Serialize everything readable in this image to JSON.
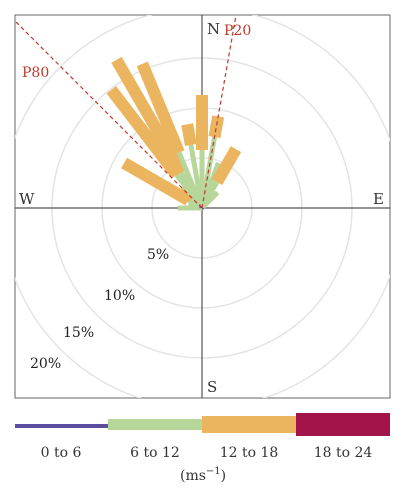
{
  "chart_data": {
    "type": "wind-rose",
    "directions": {
      "north": "N",
      "south": "S",
      "east": "E",
      "west": "W"
    },
    "ring_labels": [
      "5%",
      "10%",
      "15%",
      "20%"
    ],
    "rings_percent": [
      5,
      10,
      15,
      20
    ],
    "reference_lines": [
      {
        "name": "P80",
        "bearing_deg": 315
      },
      {
        "name": "P20",
        "bearing_deg": 10
      }
    ],
    "legend": {
      "unit": "(ms",
      "unit_exp": "−1",
      "unit_close": ")",
      "bins": [
        {
          "label": "0 to 6",
          "color": "#5b4ea0"
        },
        {
          "label": "6 to 12",
          "color": "#b7d69a"
        },
        {
          "label": "12 to 18",
          "color": "#ebb45f"
        },
        {
          "label": "18 to 24",
          "color": "#a3144a"
        }
      ]
    },
    "series": [
      {
        "bearing_deg": 270,
        "bins_percent": [
          0.0,
          2.4,
          0.0,
          0.0
        ]
      },
      {
        "bearing_deg": 292.5,
        "bins_percent": [
          0.0,
          1.4,
          0.0,
          0.0
        ]
      },
      {
        "bearing_deg": 300,
        "bins_percent": [
          0.0,
          1.6,
          7.4,
          0.0
        ]
      },
      {
        "bearing_deg": 315,
        "bins_percent": [
          0.0,
          1.4,
          1.4,
          0.0
        ]
      },
      {
        "bearing_deg": 322.5,
        "bins_percent": [
          0.0,
          4.2,
          10.7,
          0.0
        ]
      },
      {
        "bearing_deg": 330,
        "bins_percent": [
          0.0,
          4.1,
          13.0,
          0.0
        ]
      },
      {
        "bearing_deg": 337.5,
        "bins_percent": [
          0.0,
          6.0,
          9.6,
          0.0
        ]
      },
      {
        "bearing_deg": 350,
        "bins_percent": [
          0.0,
          6.4,
          2.1,
          0.0
        ]
      },
      {
        "bearing_deg": 355,
        "bins_percent": [
          0.2,
          2.5,
          0.0,
          0.0
        ]
      },
      {
        "bearing_deg": 0,
        "bins_percent": [
          0.4,
          5.4,
          5.5,
          0.0
        ]
      },
      {
        "bearing_deg": 10,
        "bins_percent": [
          0.3,
          6.9,
          2.1,
          0.0
        ]
      },
      {
        "bearing_deg": 20,
        "bins_percent": [
          0.2,
          4.6,
          0.0,
          0.0
        ]
      },
      {
        "bearing_deg": 30,
        "bins_percent": [
          0.1,
          2.9,
          3.8,
          0.0
        ]
      },
      {
        "bearing_deg": 45,
        "bins_percent": [
          0.1,
          2.1,
          0.0,
          0.0
        ]
      }
    ]
  }
}
